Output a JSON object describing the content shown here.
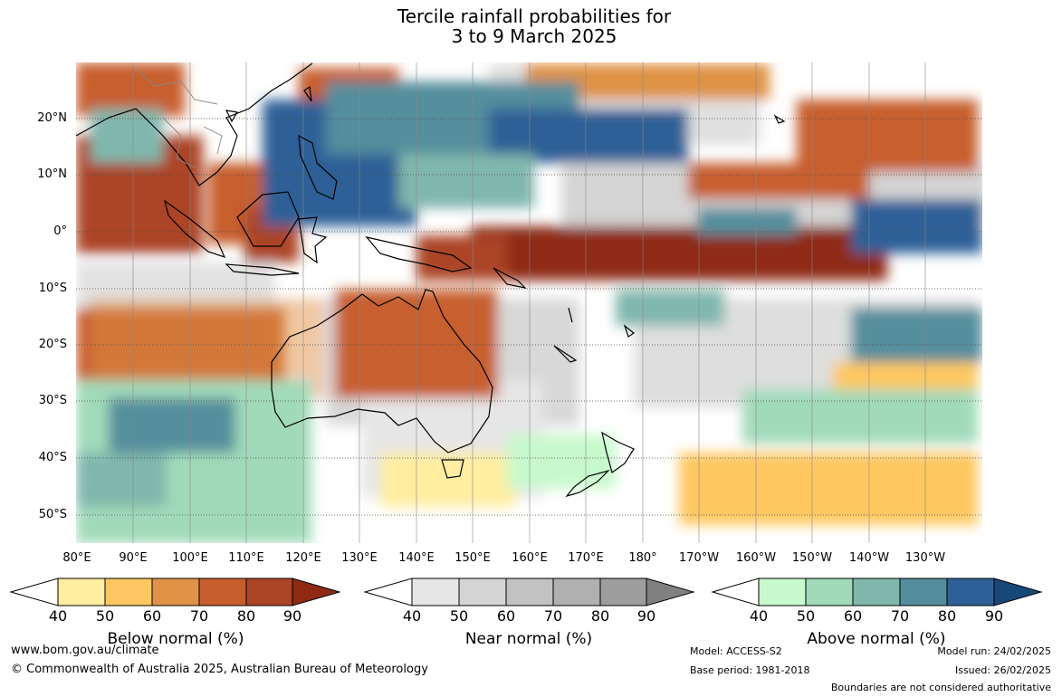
{
  "title": {
    "line1": "Tercile rainfall probabilities for",
    "line2": "3 to 9 March 2025"
  },
  "map": {
    "lat_labels": [
      "20°N",
      "10°N",
      "0°",
      "10°S",
      "20°S",
      "30°S",
      "40°S",
      "50°S"
    ],
    "lon_labels": [
      "80°E",
      "90°E",
      "100°E",
      "110°E",
      "120°E",
      "130°E",
      "140°E",
      "150°E",
      "160°E",
      "170°E",
      "180°",
      "170°W",
      "160°W",
      "150°W",
      "140°W",
      "130°W"
    ],
    "colors": {
      "ocean_base": "#ffffff",
      "coast": "#000000",
      "borders": "#888888",
      "grid": "#444444"
    }
  },
  "colorbars": [
    {
      "name": "below",
      "title": "Below normal (%)",
      "ticks": [
        "40",
        "50",
        "60",
        "70",
        "80",
        "90"
      ],
      "colors": [
        "#ffeda0",
        "#fec761",
        "#df9245",
        "#c75e2d",
        "#ac4526",
        "#8e2a14"
      ]
    },
    {
      "name": "near",
      "title": "Near normal (%)",
      "ticks": [
        "40",
        "50",
        "60",
        "70",
        "80",
        "90"
      ],
      "colors": [
        "#e6e6e6",
        "#d4d4d4",
        "#c2c2c2",
        "#b0b0b0",
        "#9e9e9e",
        "#808080"
      ]
    },
    {
      "name": "above",
      "title": "Above normal (%)",
      "ticks": [
        "40",
        "50",
        "60",
        "70",
        "80",
        "90"
      ],
      "colors": [
        "#c7f9cc",
        "#a1dab9",
        "#80b7ac",
        "#548e9d",
        "#2e6097",
        "#184878"
      ]
    }
  ],
  "footer": {
    "url": "www.bom.gov.au/climate",
    "copyright": "© Commonwealth of Australia 2025, Australian Bureau of Meteorology",
    "model": "Model: ACCESS-S2",
    "base_period": "Base period: 1981-2018",
    "model_run": "Model run: 24/02/2025",
    "issued": "Issued: 26/02/2025",
    "disclaimer": "Boundaries are not considered authoritative"
  }
}
